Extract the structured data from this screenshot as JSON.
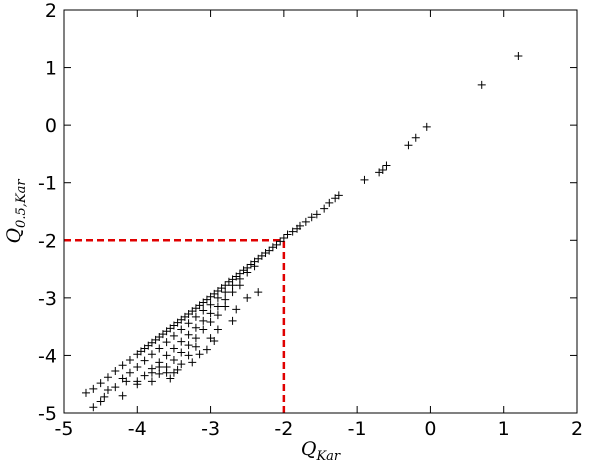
{
  "chart_data": {
    "type": "scatter",
    "title": "",
    "xlabel": {
      "base": "Q",
      "sub": "Kar"
    },
    "ylabel": {
      "base": "Q",
      "sub": "0.5,Kar"
    },
    "xlim": [
      -5,
      2
    ],
    "ylim": [
      -5,
      2
    ],
    "xticks": [
      "-5",
      "-4",
      "-3",
      "-2",
      "-1",
      "0",
      "1",
      "2"
    ],
    "yticks": [
      "-5",
      "-4",
      "-3",
      "-2",
      "-1",
      "0",
      "1",
      "2"
    ],
    "grid": false,
    "marker": "+",
    "marker_color": "#000000",
    "reference_lines": {
      "color": "#e00000",
      "style": "dashed",
      "horizontal": {
        "y": -2,
        "x_from": -5,
        "x_to": -2
      },
      "vertical": {
        "x": -2,
        "y_from": -5,
        "y_to": -2
      }
    },
    "points": [
      [
        1.2,
        1.2
      ],
      [
        0.7,
        0.7
      ],
      [
        -0.05,
        -0.03
      ],
      [
        -0.2,
        -0.22
      ],
      [
        -0.3,
        -0.35
      ],
      [
        -0.6,
        -0.7
      ],
      [
        -0.65,
        -0.78
      ],
      [
        -0.7,
        -0.82
      ],
      [
        -0.9,
        -0.95
      ],
      [
        -1.25,
        -1.22
      ],
      [
        -1.3,
        -1.27
      ],
      [
        -1.38,
        -1.35
      ],
      [
        -1.45,
        -1.45
      ],
      [
        -1.55,
        -1.55
      ],
      [
        -1.62,
        -1.6
      ],
      [
        -1.7,
        -1.68
      ],
      [
        -1.78,
        -1.75
      ],
      [
        -1.82,
        -1.8
      ],
      [
        -1.88,
        -1.85
      ],
      [
        -1.95,
        -1.9
      ],
      [
        -2.0,
        -1.96
      ],
      [
        -2.05,
        -2.02
      ],
      [
        -2.1,
        -2.08
      ],
      [
        -2.15,
        -2.12
      ],
      [
        -2.2,
        -2.18
      ],
      [
        -2.25,
        -2.22
      ],
      [
        -2.3,
        -2.27
      ],
      [
        -2.35,
        -2.32
      ],
      [
        -2.4,
        -2.37
      ],
      [
        -2.45,
        -2.42
      ],
      [
        -2.5,
        -2.48
      ],
      [
        -2.55,
        -2.52
      ],
      [
        -2.6,
        -2.58
      ],
      [
        -2.65,
        -2.63
      ],
      [
        -2.7,
        -2.68
      ],
      [
        -2.75,
        -2.72
      ],
      [
        -2.8,
        -2.78
      ],
      [
        -2.85,
        -2.83
      ],
      [
        -2.9,
        -2.88
      ],
      [
        -2.95,
        -2.93
      ],
      [
        -3.0,
        -2.98
      ],
      [
        -3.05,
        -3.03
      ],
      [
        -3.1,
        -3.08
      ],
      [
        -3.15,
        -3.13
      ],
      [
        -3.2,
        -3.18
      ],
      [
        -3.25,
        -3.23
      ],
      [
        -3.3,
        -3.28
      ],
      [
        -3.35,
        -3.33
      ],
      [
        -3.4,
        -3.38
      ],
      [
        -3.45,
        -3.43
      ],
      [
        -3.5,
        -3.48
      ],
      [
        -3.55,
        -3.53
      ],
      [
        -3.6,
        -3.58
      ],
      [
        -3.65,
        -3.63
      ],
      [
        -3.7,
        -3.68
      ],
      [
        -3.75,
        -3.73
      ],
      [
        -3.8,
        -3.78
      ],
      [
        -3.85,
        -3.83
      ],
      [
        -3.9,
        -3.88
      ],
      [
        -3.95,
        -3.93
      ],
      [
        -4.0,
        -3.98
      ],
      [
        -4.1,
        -4.08
      ],
      [
        -4.2,
        -4.17
      ],
      [
        -4.3,
        -4.27
      ],
      [
        -4.4,
        -4.38
      ],
      [
        -4.5,
        -4.48
      ],
      [
        -4.6,
        -4.58
      ],
      [
        -2.4,
        -2.45
      ],
      [
        -2.5,
        -2.56
      ],
      [
        -2.6,
        -2.67
      ],
      [
        -2.7,
        -2.78
      ],
      [
        -2.8,
        -2.9
      ],
      [
        -2.9,
        -3.0
      ],
      [
        -3.0,
        -3.12
      ],
      [
        -3.1,
        -3.22
      ],
      [
        -3.2,
        -3.33
      ],
      [
        -3.3,
        -3.44
      ],
      [
        -3.4,
        -3.55
      ],
      [
        -3.5,
        -3.66
      ],
      [
        -3.6,
        -3.77
      ],
      [
        -3.7,
        -3.88
      ],
      [
        -3.8,
        -3.98
      ],
      [
        -3.9,
        -4.09
      ],
      [
        -4.0,
        -4.2
      ],
      [
        -4.1,
        -4.3
      ],
      [
        -4.2,
        -4.4
      ],
      [
        -2.6,
        -2.78
      ],
      [
        -2.7,
        -2.9
      ],
      [
        -2.8,
        -3.03
      ],
      [
        -2.9,
        -3.15
      ],
      [
        -3.0,
        -3.27
      ],
      [
        -3.1,
        -3.4
      ],
      [
        -3.2,
        -3.52
      ],
      [
        -3.3,
        -3.64
      ],
      [
        -3.4,
        -3.76
      ],
      [
        -3.5,
        -3.88
      ],
      [
        -3.6,
        -4.0
      ],
      [
        -3.7,
        -4.12
      ],
      [
        -3.8,
        -4.23
      ],
      [
        -3.9,
        -4.35
      ],
      [
        -4.0,
        -4.45
      ],
      [
        -2.8,
        -3.15
      ],
      [
        -2.9,
        -3.3
      ],
      [
        -3.0,
        -3.42
      ],
      [
        -3.1,
        -3.55
      ],
      [
        -3.2,
        -3.7
      ],
      [
        -3.3,
        -3.82
      ],
      [
        -3.4,
        -3.95
      ],
      [
        -3.5,
        -4.08
      ],
      [
        -3.6,
        -4.2
      ],
      [
        -3.7,
        -4.32
      ],
      [
        -3.8,
        -4.45
      ],
      [
        -2.35,
        -2.9
      ],
      [
        -2.5,
        -3.0
      ],
      [
        -2.65,
        -3.2
      ],
      [
        -2.7,
        -3.4
      ],
      [
        -2.9,
        -3.55
      ],
      [
        -3.0,
        -3.7
      ],
      [
        -3.2,
        -3.85
      ],
      [
        -3.3,
        -4.0
      ],
      [
        -3.4,
        -4.15
      ],
      [
        -3.5,
        -4.3
      ],
      [
        -3.05,
        -3.9
      ],
      [
        -3.25,
        -4.12
      ],
      [
        -3.6,
        -4.3
      ],
      [
        -3.8,
        -4.3
      ],
      [
        -4.0,
        -4.5
      ],
      [
        -4.3,
        -4.55
      ],
      [
        -4.4,
        -4.6
      ],
      [
        -4.45,
        -4.72
      ],
      [
        -4.5,
        -4.8
      ],
      [
        -4.7,
        -4.65
      ],
      [
        -4.6,
        -4.9
      ],
      [
        -4.2,
        -4.7
      ],
      [
        -4.15,
        -4.45
      ],
      [
        -2.95,
        -3.75
      ],
      [
        -3.15,
        -3.98
      ],
      [
        -3.45,
        -4.25
      ],
      [
        -3.7,
        -4.2
      ],
      [
        -3.55,
        -4.4
      ]
    ]
  }
}
